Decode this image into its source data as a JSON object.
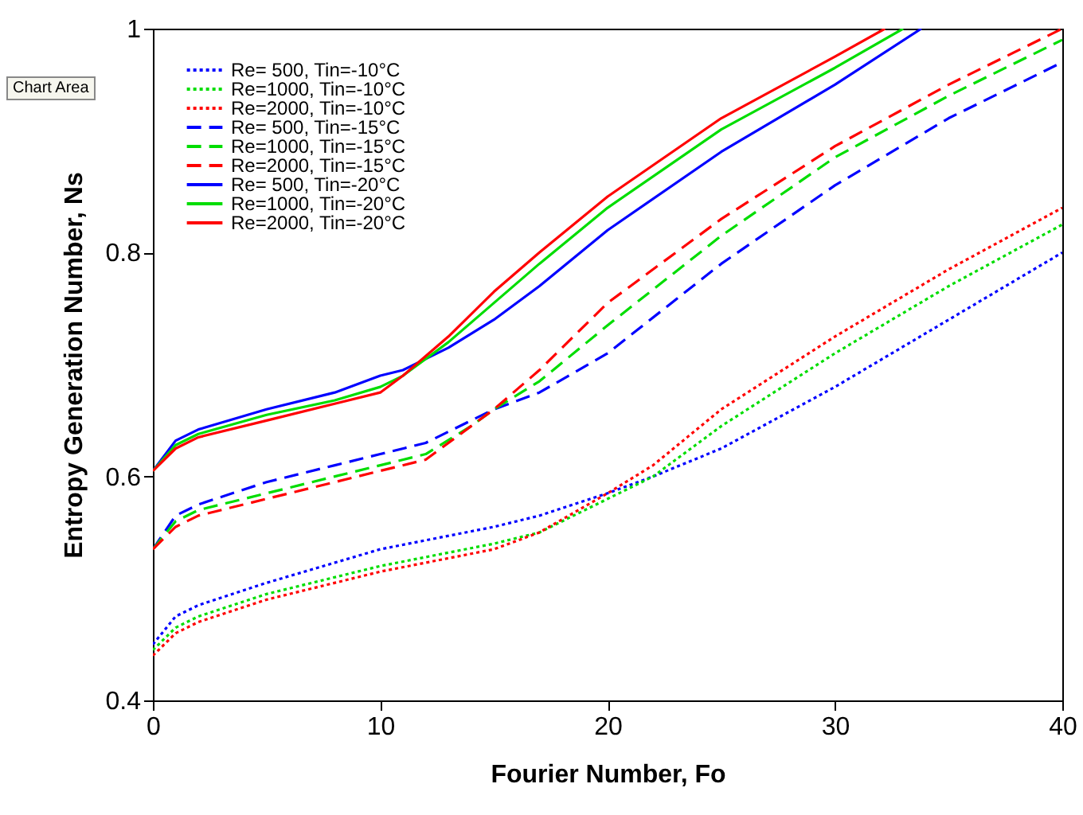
{
  "chart_data": {
    "type": "line",
    "xlabel": "Fourier Number, Fo",
    "ylabel": "Entropy Generation Number, Ns",
    "xlim": [
      0,
      40
    ],
    "ylim": [
      0.4,
      1
    ],
    "xticks": [
      0,
      10,
      20,
      30,
      40
    ],
    "yticks": [
      0.4,
      0.6,
      0.8,
      1
    ],
    "grid": false,
    "legend": "top left",
    "marker": "none",
    "annotations": [
      "Chart Area"
    ],
    "series": [
      {
        "name": "Re=  500, Tin=-10°C",
        "color": "#0000ff",
        "line_style": "dotted",
        "x": [
          0,
          1,
          2,
          5,
          10,
          15,
          17,
          20,
          22,
          25,
          30,
          35,
          40
        ],
        "values": [
          0.45,
          0.475,
          0.485,
          0.505,
          0.535,
          0.555,
          0.565,
          0.585,
          0.6,
          0.625,
          0.68,
          0.74,
          0.8
        ]
      },
      {
        "name": "Re=1000, Tin=-10°C",
        "color": "#00dd00",
        "line_style": "dotted",
        "x": [
          0,
          1,
          2,
          5,
          10,
          15,
          17,
          20,
          22,
          25,
          30,
          35,
          40
        ],
        "values": [
          0.445,
          0.465,
          0.475,
          0.495,
          0.52,
          0.54,
          0.55,
          0.58,
          0.6,
          0.645,
          0.71,
          0.77,
          0.825
        ]
      },
      {
        "name": "Re=2000, Tin=-10°C",
        "color": "#ff0000",
        "line_style": "dotted",
        "x": [
          0,
          1,
          2,
          5,
          10,
          15,
          17,
          20,
          22,
          25,
          30,
          35,
          40
        ],
        "values": [
          0.44,
          0.46,
          0.47,
          0.49,
          0.515,
          0.535,
          0.55,
          0.585,
          0.61,
          0.66,
          0.725,
          0.785,
          0.84
        ]
      },
      {
        "name": "Re=  500, Tin=-15°C",
        "color": "#0000ff",
        "line_style": "dashed",
        "x": [
          0,
          1,
          2,
          5,
          8,
          10,
          12,
          14,
          15,
          17,
          20,
          25,
          30,
          35,
          40
        ],
        "values": [
          0.535,
          0.565,
          0.575,
          0.595,
          0.61,
          0.62,
          0.63,
          0.65,
          0.66,
          0.675,
          0.71,
          0.79,
          0.86,
          0.92,
          0.97
        ]
      },
      {
        "name": "Re=1000, Tin=-15°C",
        "color": "#00dd00",
        "line_style": "dashed",
        "x": [
          0,
          1,
          2,
          5,
          8,
          10,
          12,
          14,
          15,
          17,
          20,
          25,
          30,
          35,
          40
        ],
        "values": [
          0.535,
          0.56,
          0.57,
          0.585,
          0.6,
          0.61,
          0.62,
          0.645,
          0.66,
          0.685,
          0.735,
          0.815,
          0.885,
          0.94,
          0.99
        ]
      },
      {
        "name": "Re=2000, Tin=-15°C",
        "color": "#ff0000",
        "line_style": "dashed",
        "x": [
          0,
          1,
          2,
          5,
          8,
          10,
          12,
          14,
          15,
          17,
          20,
          25,
          30,
          35,
          40
        ],
        "values": [
          0.535,
          0.555,
          0.565,
          0.58,
          0.595,
          0.605,
          0.615,
          0.645,
          0.66,
          0.695,
          0.755,
          0.83,
          0.895,
          0.95,
          1.0
        ]
      },
      {
        "name": "Re=  500, Tin=-20°C",
        "color": "#0000ff",
        "line_style": "solid",
        "x": [
          0,
          1,
          2,
          5,
          8,
          10,
          11,
          13,
          15,
          17,
          20,
          25,
          30,
          33.8
        ],
        "values": [
          0.605,
          0.632,
          0.642,
          0.66,
          0.675,
          0.69,
          0.695,
          0.715,
          0.74,
          0.77,
          0.82,
          0.89,
          0.95,
          1.0
        ]
      },
      {
        "name": "Re=1000, Tin=-20°C",
        "color": "#00dd00",
        "line_style": "solid",
        "x": [
          0,
          1,
          2,
          5,
          8,
          10,
          11,
          13,
          15,
          17,
          20,
          25,
          30,
          33
        ],
        "values": [
          0.605,
          0.628,
          0.638,
          0.655,
          0.668,
          0.68,
          0.69,
          0.72,
          0.755,
          0.79,
          0.84,
          0.91,
          0.965,
          1.0
        ]
      },
      {
        "name": "Re=2000, Tin=-20°C",
        "color": "#ff0000",
        "line_style": "solid",
        "x": [
          0,
          1,
          2,
          5,
          8,
          10,
          11,
          13,
          15,
          17,
          20,
          25,
          30,
          32.2
        ],
        "values": [
          0.605,
          0.625,
          0.635,
          0.65,
          0.665,
          0.675,
          0.69,
          0.725,
          0.765,
          0.8,
          0.85,
          0.92,
          0.975,
          1.0
        ]
      }
    ]
  }
}
